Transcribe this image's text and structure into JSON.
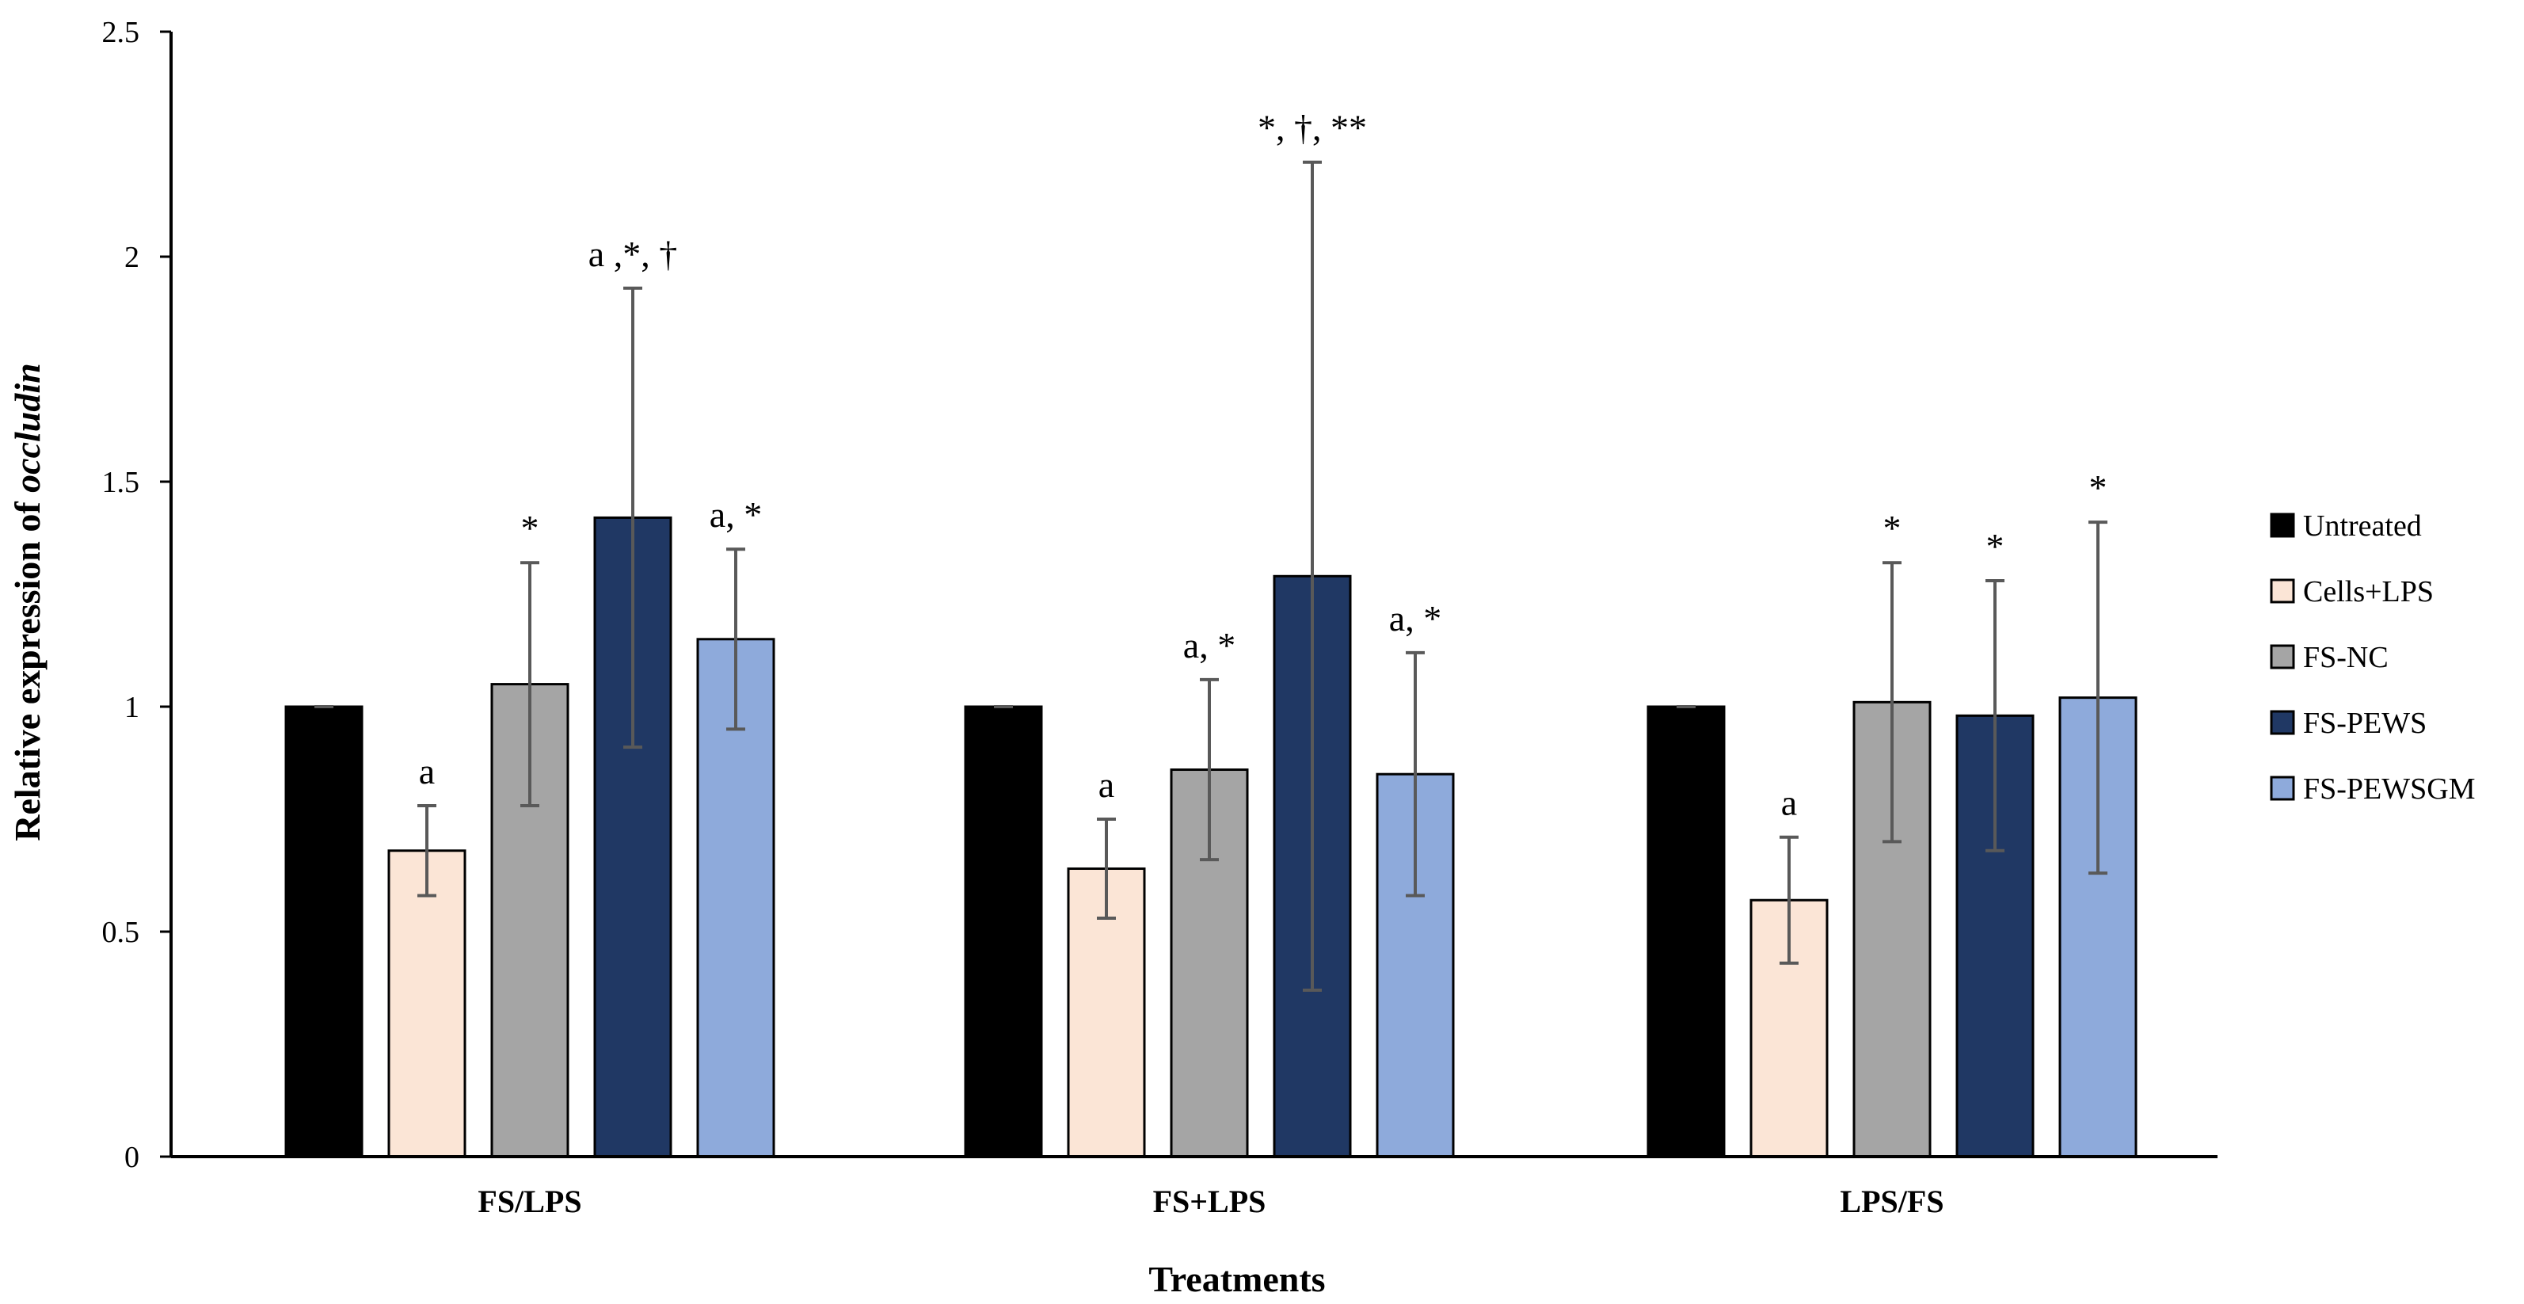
{
  "chart_data": {
    "type": "bar",
    "title": "",
    "xlabel": "Treatments",
    "ylabel_prefix": "Relative expression of ",
    "ylabel_italic": "occludin",
    "ylim": [
      0,
      2.5
    ],
    "yticks": [
      0,
      0.5,
      1,
      1.5,
      2,
      2.5
    ],
    "ytick_labels": [
      "0",
      "0.5",
      "1",
      "1.5",
      "2",
      "2.5"
    ],
    "categories": [
      "FS/LPS",
      "FS+LPS",
      "LPS/FS"
    ],
    "legend_position": "right",
    "grid": false,
    "series": [
      {
        "name": "Untreated",
        "color": "#000000",
        "values": [
          1.0,
          1.0,
          1.0
        ],
        "err_low": [
          0.0,
          0.0,
          0.0
        ],
        "err_high": [
          0.0,
          0.0,
          0.0
        ],
        "labels": [
          "",
          "",
          ""
        ]
      },
      {
        "name": "Cells+LPS",
        "color": "#fbe5d6",
        "values": [
          0.68,
          0.64,
          0.57
        ],
        "err_low": [
          0.1,
          0.11,
          0.14
        ],
        "err_high": [
          0.1,
          0.11,
          0.14
        ],
        "labels": [
          "a",
          "a",
          "a"
        ]
      },
      {
        "name": "FS-NC",
        "color": "#a5a5a5",
        "values": [
          1.05,
          0.86,
          1.01
        ],
        "err_low": [
          0.27,
          0.2,
          0.31
        ],
        "err_high": [
          0.27,
          0.2,
          0.31
        ],
        "labels": [
          "*",
          "a, *",
          "*"
        ]
      },
      {
        "name": "FS-PEWS",
        "color": "#203864",
        "values": [
          1.42,
          1.29,
          0.98
        ],
        "err_low": [
          0.51,
          0.92,
          0.3
        ],
        "err_high": [
          0.51,
          0.92,
          0.3
        ],
        "labels": [
          "a ,*, †",
          "*, †, **",
          "*"
        ]
      },
      {
        "name": "FS-PEWSGM",
        "color": "#8eaadb",
        "values": [
          1.15,
          0.85,
          1.02
        ],
        "err_low": [
          0.2,
          0.27,
          0.39
        ],
        "err_high": [
          0.2,
          0.27,
          0.39
        ],
        "labels": [
          "a, *",
          "a, *",
          "*"
        ]
      }
    ]
  }
}
